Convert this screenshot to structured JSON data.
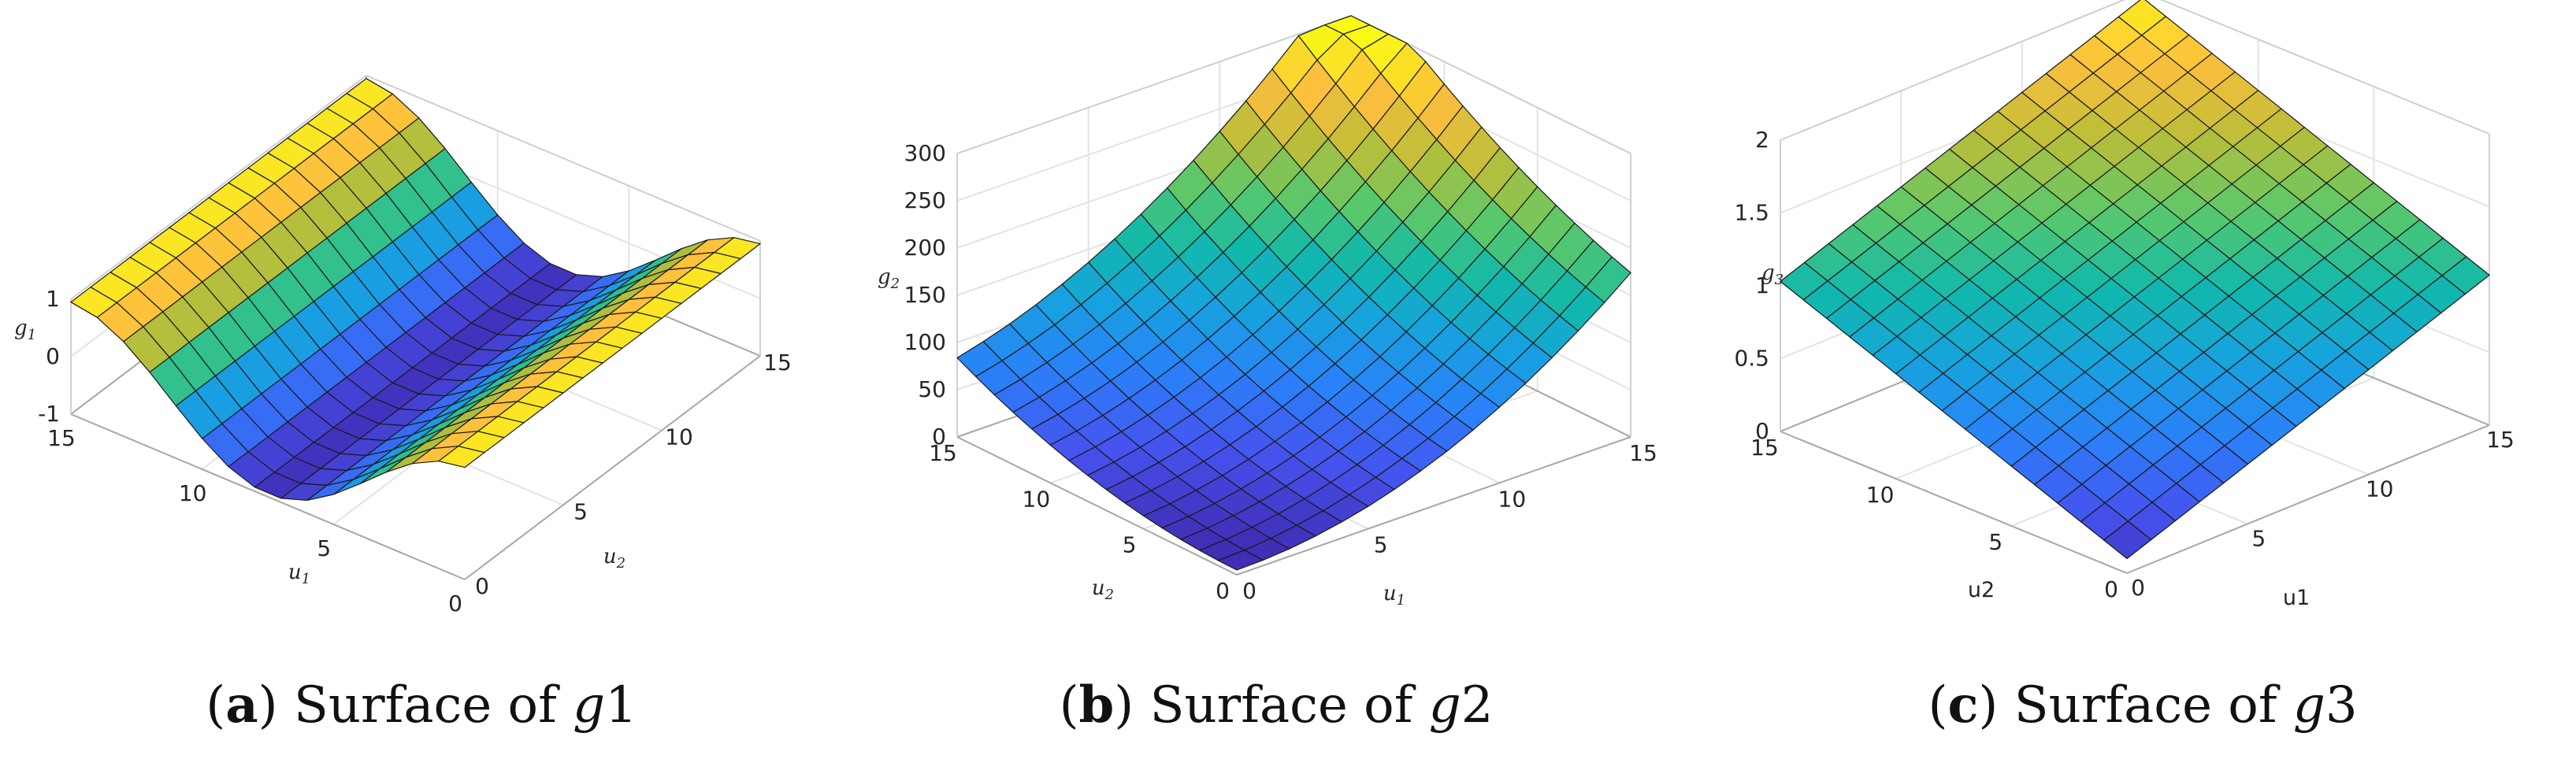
{
  "chart_data": [
    {
      "type": "surface",
      "caption": {
        "label": "a",
        "text": "Surface of",
        "var": "g",
        "var_num": "1"
      },
      "xlabel": "u1",
      "ylabel": "u2",
      "zlabel": "g1",
      "x_ticks": [
        "0",
        "5",
        "10",
        "15"
      ],
      "y_ticks": [
        "0",
        "5",
        "10",
        "15"
      ],
      "z_ticks": [
        "-1",
        "0",
        "1"
      ],
      "xlim": [
        0,
        15
      ],
      "ylim": [
        0,
        15
      ],
      "zlim": [
        -1,
        1
      ],
      "function": "sin(u1 / 2.4) approximately",
      "grid": true,
      "colormap": "parula"
    },
    {
      "type": "surface",
      "caption": {
        "label": "b",
        "text": "Surface of",
        "var": "g",
        "var_num": "2"
      },
      "xlabel": "u1",
      "ylabel": "u2",
      "zlabel": "g2",
      "x_ticks": [
        "0",
        "5",
        "10",
        "15"
      ],
      "y_ticks": [
        "0",
        "5",
        "10",
        "15"
      ],
      "z_ticks": [
        "0",
        "50",
        "100",
        "150",
        "200",
        "250",
        "300"
      ],
      "xlim": [
        0,
        15
      ],
      "ylim": [
        0,
        15
      ],
      "zlim": [
        0,
        300
      ],
      "function": "u1^2 + u2^2 + u1*u2 (approx.)",
      "grid": true,
      "colormap": "parula"
    },
    {
      "type": "surface",
      "caption": {
        "label": "c",
        "text": "Surface of",
        "var": "g",
        "var_num": "3"
      },
      "xlabel": "u1",
      "ylabel": "u2",
      "zlabel": "g3",
      "x_ticks": [
        "0",
        "5",
        "10",
        "15"
      ],
      "y_ticks": [
        "0",
        "5",
        "10",
        "15"
      ],
      "z_ticks": [
        "0",
        "0.5",
        "1",
        "1.5",
        "2"
      ],
      "xlim": [
        0,
        15
      ],
      "ylim": [
        0,
        15
      ],
      "zlim": [
        0,
        2
      ],
      "function": "(u1 + u2) / 15 (approx.)",
      "grid": true,
      "colormap": "parula"
    }
  ]
}
